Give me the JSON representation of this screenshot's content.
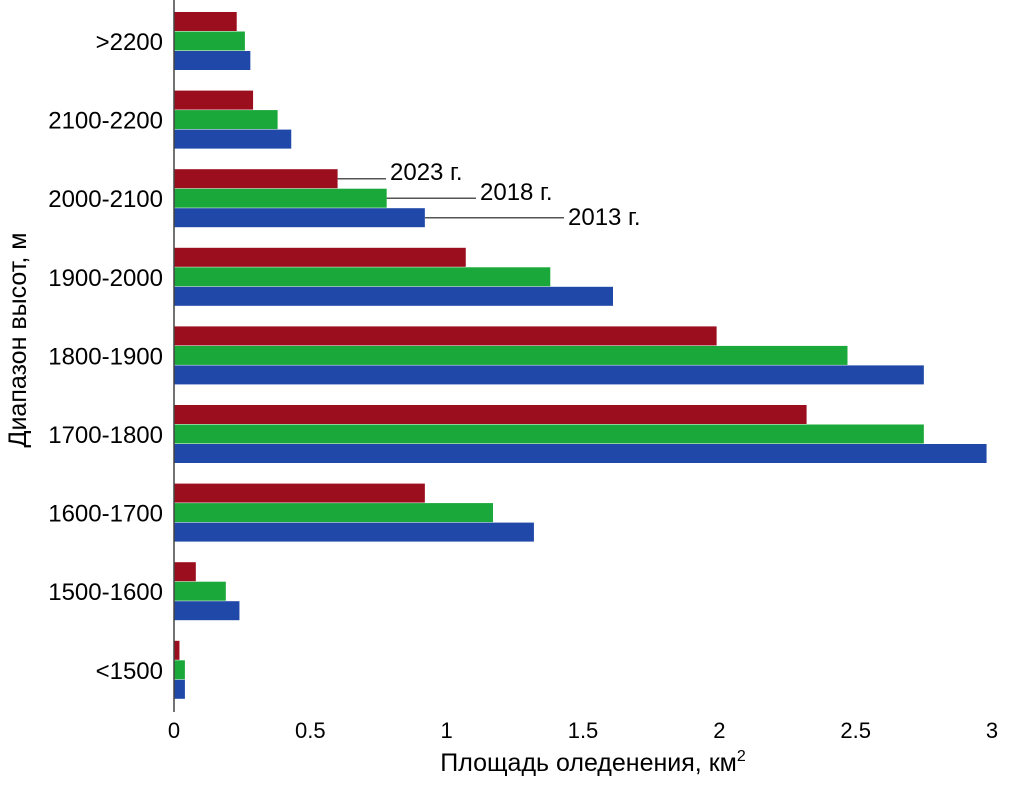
{
  "chart_data": {
    "type": "bar",
    "orientation": "horizontal",
    "title": "",
    "xlabel": "Площадь оледенения, км",
    "xlabel_superscript": "2",
    "ylabel": "Диапазон высот, м",
    "xlim": [
      0,
      3
    ],
    "xticks": [
      "0",
      "0.5",
      "1",
      "1.5",
      "2",
      "2.5",
      "3"
    ],
    "xtick_values": [
      0,
      0.5,
      1,
      1.5,
      2,
      2.5,
      3
    ],
    "grid": false,
    "legend": "none",
    "categories": [
      ">2200",
      "2100-2200",
      "2000-2100",
      "1900-2000",
      "1800-1900",
      "1700-1800",
      "1600-1700",
      "1500-1600",
      "<1500"
    ],
    "series": [
      {
        "name": "2023 г.",
        "color": "#9b0e1e",
        "values": [
          0.23,
          0.29,
          0.6,
          1.07,
          1.99,
          2.32,
          0.92,
          0.08,
          0.02
        ]
      },
      {
        "name": "2018 г.",
        "color": "#1aa83a",
        "values": [
          0.26,
          0.38,
          0.78,
          1.38,
          2.47,
          2.75,
          1.17,
          0.19,
          0.04
        ]
      },
      {
        "name": "2013 г.",
        "color": "#1f48a8",
        "values": [
          0.28,
          0.43,
          0.92,
          1.61,
          2.75,
          2.98,
          1.32,
          0.24,
          0.04
        ]
      }
    ],
    "annotations": [
      "2023 г.",
      "2018 г.",
      "2013 г."
    ],
    "annotated_category": "2000-2100"
  }
}
